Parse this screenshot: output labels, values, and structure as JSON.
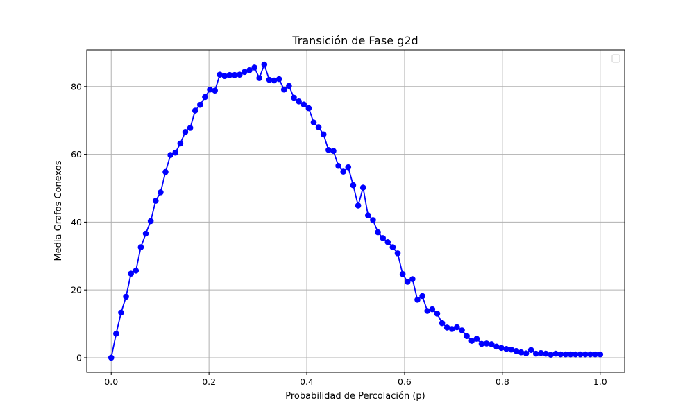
{
  "chart_data": {
    "type": "line",
    "title": "Transición de Fase g2d",
    "xlabel": "Probabilidad de Percolación (p)",
    "ylabel": "Media Grafos Conexos",
    "xlim": [
      -0.05,
      1.05
    ],
    "ylim": [
      -4.3,
      90.8
    ],
    "xticks": [
      0.0,
      0.2,
      0.4,
      0.6,
      0.8,
      1.0
    ],
    "xtick_labels": [
      "0.0",
      "0.2",
      "0.4",
      "0.6",
      "0.8",
      "1.0"
    ],
    "yticks": [
      0,
      20,
      40,
      60,
      80
    ],
    "ytick_labels": [
      "0",
      "20",
      "40",
      "60",
      "80"
    ],
    "grid": true,
    "legend": "top-right (empty)",
    "colors": {
      "series": "#0000ff",
      "grid": "#b0b0b0",
      "axes": "#000000"
    },
    "series": [
      {
        "marker": "circle",
        "x": [
          0,
          0.0101,
          0.0202,
          0.0303,
          0.0404,
          0.0505,
          0.0606,
          0.0707,
          0.0808,
          0.0909,
          0.101,
          0.1111,
          0.1212,
          0.1313,
          0.1414,
          0.1515,
          0.1616,
          0.1717,
          0.1818,
          0.1919,
          0.202,
          0.2121,
          0.2222,
          0.2323,
          0.2424,
          0.2525,
          0.2626,
          0.2727,
          0.2828,
          0.2929,
          0.303,
          0.3131,
          0.3232,
          0.3333,
          0.3434,
          0.3535,
          0.3636,
          0.3737,
          0.3838,
          0.3939,
          0.404,
          0.4141,
          0.4242,
          0.4343,
          0.4444,
          0.4545,
          0.4646,
          0.4747,
          0.4848,
          0.4949,
          0.5051,
          0.5152,
          0.5253,
          0.5354,
          0.5455,
          0.5556,
          0.5657,
          0.5758,
          0.5859,
          0.596,
          0.6061,
          0.6162,
          0.6263,
          0.6364,
          0.6465,
          0.6566,
          0.6667,
          0.6768,
          0.6869,
          0.697,
          0.7071,
          0.7172,
          0.7273,
          0.7374,
          0.7475,
          0.7576,
          0.7677,
          0.7778,
          0.7879,
          0.798,
          0.8081,
          0.8182,
          0.8283,
          0.8384,
          0.8485,
          0.8586,
          0.8687,
          0.8788,
          0.8889,
          0.899,
          0.9091,
          0.9192,
          0.9293,
          0.9394,
          0.9495,
          0.9596,
          0.9697,
          0.9798,
          0.9899,
          1.0
        ],
        "y": [
          0,
          7.1,
          13.3,
          18.0,
          24.8,
          25.7,
          32.6,
          36.6,
          40.3,
          46.3,
          48.8,
          54.8,
          59.8,
          60.5,
          63.2,
          66.6,
          67.8,
          72.9,
          74.6,
          76.9,
          79.1,
          78.8,
          83.5,
          83.1,
          83.4,
          83.4,
          83.5,
          84.3,
          84.8,
          85.6,
          82.5,
          86.5,
          82.0,
          81.8,
          82.2,
          79.1,
          80.2,
          76.7,
          75.6,
          74.7,
          73.6,
          69.4,
          68.0,
          65.9,
          61.3,
          61.0,
          56.6,
          54.9,
          56.2,
          50.9,
          44.9,
          50.2,
          42.0,
          40.6,
          37.0,
          35.3,
          34.1,
          32.6,
          30.8,
          24.7,
          22.4,
          23.2,
          17.1,
          18.2,
          13.8,
          14.3,
          13.0,
          10.2,
          8.9,
          8.5,
          9.0,
          8.1,
          6.4,
          5.0,
          5.6,
          4.1,
          4.2,
          4.0,
          3.3,
          2.9,
          2.6,
          2.4,
          2.0,
          1.6,
          1.3,
          2.3,
          1.2,
          1.4,
          1.2,
          0.9,
          1.2,
          1.0,
          1.0,
          1.0,
          1.0,
          1.0,
          1.0,
          1.0,
          1.0,
          1.0
        ]
      }
    ]
  }
}
